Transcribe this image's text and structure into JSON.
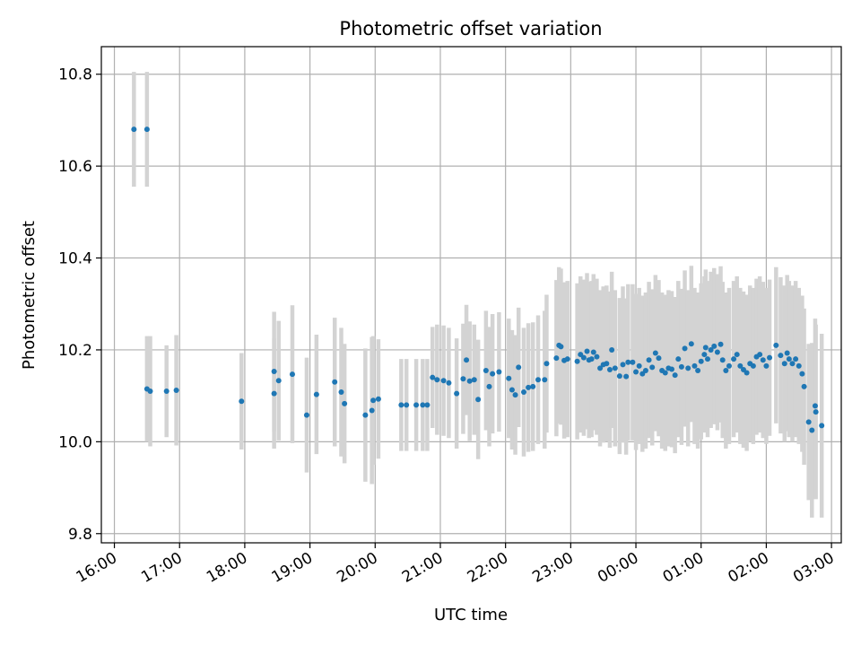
{
  "chart_data": {
    "type": "scatter",
    "title": "Photometric offset variation",
    "xlabel": "UTC time",
    "ylabel": "Photometric offset",
    "x_unit": "hours since 16:00 UTC",
    "xlim": [
      -0.2,
      11.15
    ],
    "ylim": [
      9.78,
      10.86
    ],
    "x_ticks": [
      0,
      1,
      2,
      3,
      4,
      5,
      6,
      7,
      8,
      9,
      10,
      11
    ],
    "x_tick_labels": [
      "16:00",
      "17:00",
      "18:00",
      "19:00",
      "20:00",
      "21:00",
      "22:00",
      "23:00",
      "00:00",
      "01:00",
      "02:00",
      "03:00"
    ],
    "y_ticks": [
      9.8,
      10.0,
      10.2,
      10.4,
      10.6,
      10.8
    ],
    "y_tick_labels": [
      "9.8",
      "10.0",
      "10.2",
      "10.4",
      "10.6",
      "10.8"
    ],
    "grid": true,
    "point_color": "#1f77b4",
    "errorbar_color": "#d3d3d3",
    "series": [
      {
        "points": [
          [
            0.3,
            10.68,
            0.125
          ],
          [
            0.5,
            10.68,
            0.125
          ],
          [
            0.5,
            10.115,
            0.115
          ],
          [
            0.55,
            10.11,
            0.12
          ],
          [
            0.8,
            10.11,
            0.1
          ],
          [
            0.95,
            10.112,
            0.12
          ],
          [
            1.95,
            10.088,
            0.105
          ],
          [
            2.45,
            10.153,
            0.13
          ],
          [
            2.45,
            10.105,
            0.12
          ],
          [
            2.52,
            10.133,
            0.13
          ],
          [
            2.73,
            10.147,
            0.15
          ],
          [
            2.95,
            10.058,
            0.125
          ],
          [
            3.1,
            10.103,
            0.13
          ],
          [
            3.38,
            10.13,
            0.14
          ],
          [
            3.48,
            10.108,
            0.14
          ],
          [
            3.53,
            10.083,
            0.13
          ],
          [
            3.85,
            10.058,
            0.145
          ],
          [
            3.95,
            10.068,
            0.16
          ],
          [
            3.97,
            10.09,
            0.14
          ],
          [
            4.05,
            10.093,
            0.13
          ],
          [
            4.4,
            10.08,
            0.1
          ],
          [
            4.48,
            10.08,
            0.1
          ],
          [
            4.63,
            10.08,
            0.1
          ],
          [
            4.73,
            10.08,
            0.1
          ],
          [
            4.8,
            10.08,
            0.1
          ],
          [
            4.88,
            10.14,
            0.11
          ],
          [
            4.95,
            10.135,
            0.12
          ],
          [
            5.05,
            10.133,
            0.12
          ],
          [
            5.13,
            10.128,
            0.12
          ],
          [
            5.25,
            10.105,
            0.12
          ],
          [
            5.35,
            10.137,
            0.12
          ],
          [
            5.4,
            10.178,
            0.12
          ],
          [
            5.45,
            10.132,
            0.13
          ],
          [
            5.52,
            10.135,
            0.12
          ],
          [
            5.58,
            10.092,
            0.13
          ],
          [
            5.7,
            10.155,
            0.13
          ],
          [
            5.75,
            10.12,
            0.13
          ],
          [
            5.8,
            10.148,
            0.13
          ],
          [
            5.9,
            10.152,
            0.13
          ],
          [
            6.05,
            10.138,
            0.13
          ],
          [
            6.1,
            10.113,
            0.13
          ],
          [
            6.15,
            10.102,
            0.13
          ],
          [
            6.2,
            10.162,
            0.13
          ],
          [
            6.28,
            10.108,
            0.14
          ],
          [
            6.35,
            10.118,
            0.14
          ],
          [
            6.42,
            10.12,
            0.14
          ],
          [
            6.5,
            10.135,
            0.14
          ],
          [
            6.6,
            10.135,
            0.15
          ],
          [
            6.63,
            10.17,
            0.15
          ],
          [
            6.78,
            10.182,
            0.17
          ],
          [
            6.82,
            10.21,
            0.17
          ],
          [
            6.85,
            10.207,
            0.17
          ],
          [
            6.9,
            10.177,
            0.17
          ],
          [
            6.95,
            10.18,
            0.17
          ],
          [
            7.1,
            10.175,
            0.17
          ],
          [
            7.15,
            10.19,
            0.17
          ],
          [
            7.2,
            10.183,
            0.17
          ],
          [
            7.25,
            10.197,
            0.17
          ],
          [
            7.28,
            10.178,
            0.17
          ],
          [
            7.32,
            10.18,
            0.17
          ],
          [
            7.35,
            10.195,
            0.17
          ],
          [
            7.4,
            10.185,
            0.17
          ],
          [
            7.45,
            10.16,
            0.17
          ],
          [
            7.5,
            10.168,
            0.17
          ],
          [
            7.55,
            10.17,
            0.17
          ],
          [
            7.6,
            10.157,
            0.17
          ],
          [
            7.63,
            10.2,
            0.17
          ],
          [
            7.68,
            10.16,
            0.17
          ],
          [
            7.75,
            10.143,
            0.17
          ],
          [
            7.8,
            10.168,
            0.17
          ],
          [
            7.85,
            10.142,
            0.17
          ],
          [
            7.88,
            10.173,
            0.17
          ],
          [
            7.95,
            10.173,
            0.17
          ],
          [
            8.0,
            10.152,
            0.17
          ],
          [
            8.05,
            10.165,
            0.17
          ],
          [
            8.1,
            10.148,
            0.17
          ],
          [
            8.15,
            10.155,
            0.17
          ],
          [
            8.2,
            10.178,
            0.17
          ],
          [
            8.25,
            10.162,
            0.17
          ],
          [
            8.3,
            10.193,
            0.17
          ],
          [
            8.35,
            10.182,
            0.17
          ],
          [
            8.4,
            10.155,
            0.17
          ],
          [
            8.45,
            10.15,
            0.17
          ],
          [
            8.5,
            10.16,
            0.17
          ],
          [
            8.55,
            10.158,
            0.17
          ],
          [
            8.6,
            10.145,
            0.17
          ],
          [
            8.65,
            10.18,
            0.17
          ],
          [
            8.7,
            10.163,
            0.17
          ],
          [
            8.75,
            10.203,
            0.17
          ],
          [
            8.8,
            10.16,
            0.17
          ],
          [
            8.85,
            10.213,
            0.17
          ],
          [
            8.9,
            10.165,
            0.17
          ],
          [
            8.95,
            10.155,
            0.17
          ],
          [
            9.0,
            10.175,
            0.17
          ],
          [
            9.05,
            10.19,
            0.17
          ],
          [
            9.07,
            10.205,
            0.17
          ],
          [
            9.1,
            10.18,
            0.17
          ],
          [
            9.15,
            10.2,
            0.17
          ],
          [
            9.2,
            10.208,
            0.17
          ],
          [
            9.25,
            10.195,
            0.17
          ],
          [
            9.3,
            10.212,
            0.17
          ],
          [
            9.33,
            10.178,
            0.17
          ],
          [
            9.38,
            10.155,
            0.17
          ],
          [
            9.43,
            10.165,
            0.17
          ],
          [
            9.5,
            10.18,
            0.17
          ],
          [
            9.55,
            10.19,
            0.17
          ],
          [
            9.6,
            10.165,
            0.17
          ],
          [
            9.65,
            10.157,
            0.17
          ],
          [
            9.7,
            10.15,
            0.17
          ],
          [
            9.75,
            10.17,
            0.17
          ],
          [
            9.8,
            10.165,
            0.17
          ],
          [
            9.85,
            10.185,
            0.17
          ],
          [
            9.9,
            10.19,
            0.17
          ],
          [
            9.95,
            10.178,
            0.17
          ],
          [
            10.0,
            10.165,
            0.17
          ],
          [
            10.05,
            10.183,
            0.17
          ],
          [
            10.15,
            10.21,
            0.17
          ],
          [
            10.22,
            10.188,
            0.17
          ],
          [
            10.28,
            10.17,
            0.17
          ],
          [
            10.32,
            10.193,
            0.17
          ],
          [
            10.35,
            10.18,
            0.17
          ],
          [
            10.4,
            10.17,
            0.17
          ],
          [
            10.45,
            10.18,
            0.17
          ],
          [
            10.5,
            10.165,
            0.17
          ],
          [
            10.55,
            10.148,
            0.17
          ],
          [
            10.58,
            10.12,
            0.17
          ],
          [
            10.65,
            10.043,
            0.17
          ],
          [
            10.7,
            10.025,
            0.19
          ],
          [
            10.75,
            10.078,
            0.19
          ],
          [
            10.76,
            10.065,
            0.19
          ],
          [
            10.85,
            10.035,
            0.2
          ]
        ]
      }
    ]
  }
}
